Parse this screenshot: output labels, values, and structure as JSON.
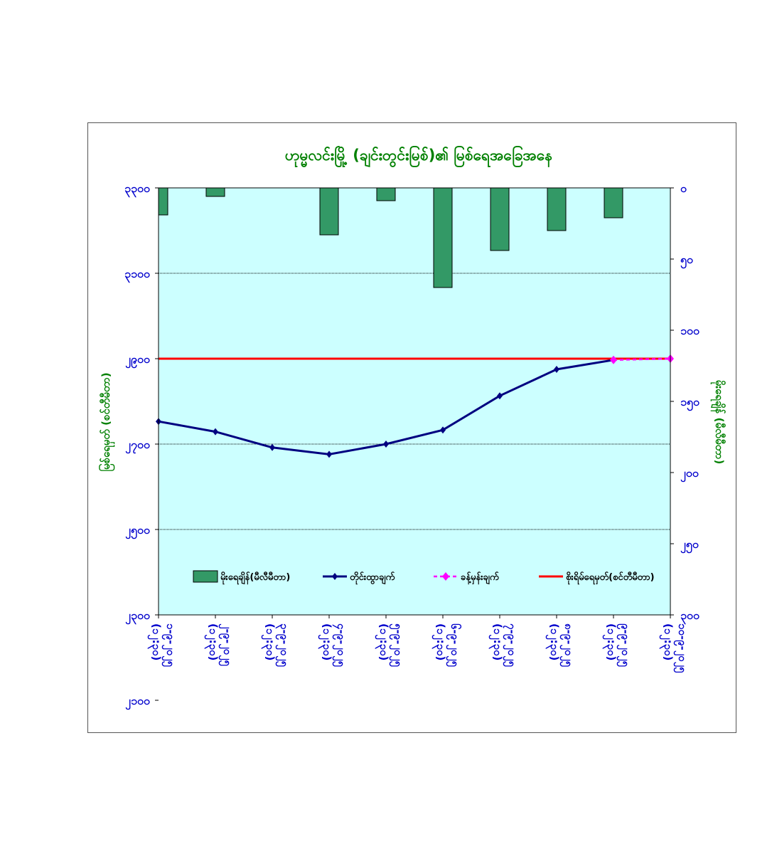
{
  "chart_data": {
    "type": "bar+line",
    "title": "ဟုမ္မလင်းမြို့ (ချင်းတွင်းမြစ်)၏ မြစ်ရေအခြေအနေ",
    "ylabel_left": "မြစ်ရေမှတ် (စင်တီမီတာ)",
    "ylabel_right": "မိုးရေချိန် (မီလီမီတာ)",
    "categories": [
      [
        "၁-၉-၂၀၂၅",
        "(၁၂:၃၀)"
      ],
      [
        "၂-၉-၂၀၂၅",
        "(၁၂:၃၀)"
      ],
      [
        "၃-၉-၂၀၂၅",
        "(၁၂:၃၀)"
      ],
      [
        "၄-၉-၂၀၂၅",
        "(၁၂:၃၀)"
      ],
      [
        "၅-၉-၂၀၂၅",
        "(၁၂:၃၀)"
      ],
      [
        "၆-၉-၂၀၂၅",
        "(၁၂:၃၀)"
      ],
      [
        "၇-၉-၂၀၂၅",
        "(၁၂:၃၀)"
      ],
      [
        "၈-၉-၂၀၂၅",
        "(၁၂:၃၀)"
      ],
      [
        "၉-၉-၂၀၂၅",
        "(၁၂:၃၀)"
      ],
      [
        "၁၀-၉-၂၀၂၅",
        "(၁၂:၃၀)"
      ]
    ],
    "left_axis": {
      "min": 2300,
      "max": 3300,
      "step": 200,
      "tick_labels": [
        "၃၃၀၀",
        "၃၁၀၀",
        "၂၉၀၀",
        "၂၇၀၀",
        "၂၅၀၀",
        "၂၃၀၀",
        "၂၁၀၀"
      ]
    },
    "right_axis": {
      "min": 0,
      "max": 300,
      "step": 50,
      "inverted": true,
      "tick_labels": [
        "၀",
        "၅၀",
        "၁၀၀",
        "၁၅၀",
        "၂၀၀",
        "၂၅၀",
        "၃၀၀"
      ]
    },
    "series": [
      {
        "name": "မိုးရေချိန်(မီလီမီတာ)",
        "type": "bar",
        "axis": "right",
        "color": "#339966",
        "values": [
          19,
          6,
          0,
          33,
          9,
          70,
          44,
          30,
          21,
          null
        ]
      },
      {
        "name": "တိုင်းထွာချက်",
        "type": "line",
        "axis": "left",
        "color": "#000080",
        "values": [
          2753,
          2729,
          2692,
          2676,
          2700,
          2733,
          2813,
          2875,
          2897,
          null
        ]
      },
      {
        "name": "ခန့်မှန်းချက်",
        "type": "line-dashed",
        "axis": "left",
        "color": "#ff00ff",
        "values": [
          null,
          null,
          null,
          null,
          null,
          null,
          null,
          null,
          2897,
          2900
        ]
      },
      {
        "name": "စိုးရိမ်ရေမှတ်(စင်တီမီတာ)",
        "type": "hline",
        "axis": "left",
        "color": "#ff0000",
        "value": 2900
      }
    ],
    "grid": true,
    "legend_position": "bottom-inside"
  }
}
